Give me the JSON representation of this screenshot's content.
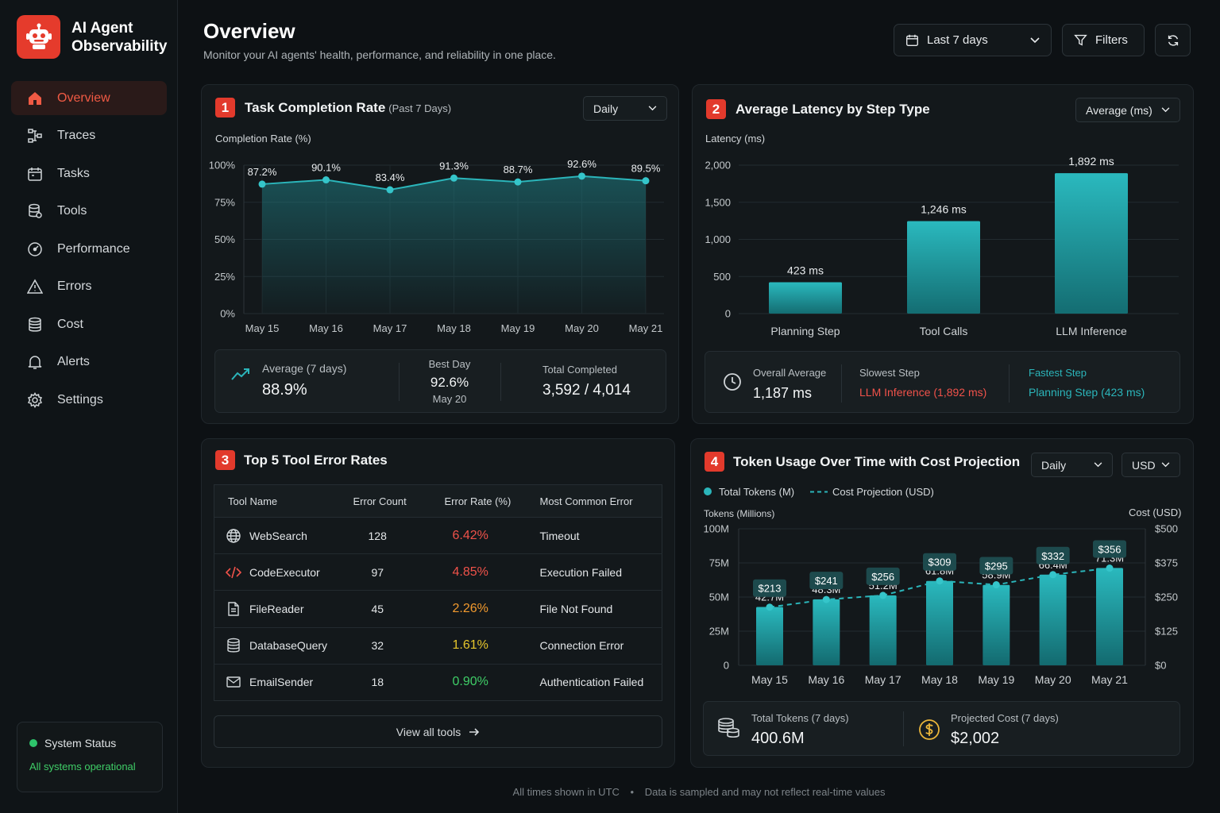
{
  "app": {
    "title_line1": "AI Agent",
    "title_line2": "Observability"
  },
  "nav": [
    {
      "label": "Overview",
      "icon": "home-icon",
      "active": true
    },
    {
      "label": "Traces",
      "icon": "traces-icon"
    },
    {
      "label": "Tasks",
      "icon": "calendar-icon"
    },
    {
      "label": "Tools",
      "icon": "tools-icon"
    },
    {
      "label": "Performance",
      "icon": "gauge-icon"
    },
    {
      "label": "Errors",
      "icon": "warning-icon"
    },
    {
      "label": "Cost",
      "icon": "coins-icon"
    },
    {
      "label": "Alerts",
      "icon": "bell-icon"
    },
    {
      "label": "Settings",
      "icon": "gear-icon"
    }
  ],
  "system_status": {
    "label": "System Status",
    "message": "All systems operational"
  },
  "header": {
    "title": "Overview",
    "subtitle": "Monitor your AI agents' health, performance, and reliability in one place.",
    "date_range": "Last 7 days",
    "filters": "Filters"
  },
  "task_card": {
    "number": "1",
    "title": "Task Completion Rate",
    "title_sub": "(Past 7 Days)",
    "select": "Daily",
    "summary": {
      "avg_label": "Average (7 days)",
      "avg_value": "88.9%",
      "best_label": "Best Day",
      "best_value": "92.6%",
      "best_date": "May 20",
      "total_label": "Total Completed",
      "total_value": "3,592 / 4,014"
    }
  },
  "latency_card": {
    "number": "2",
    "title": "Average Latency by Step Type",
    "select": "Average (ms)",
    "summary": {
      "overall_label": "Overall Average",
      "overall_value": "1,187 ms",
      "slowest_label": "Slowest Step",
      "slowest_value": "LLM Inference (1,892 ms)",
      "fastest_label": "Fastest Step",
      "fastest_value": "Planning Step (423 ms)"
    }
  },
  "errors_card": {
    "number": "3",
    "title": "Top 5 Tool Error Rates",
    "columns": [
      "Tool Name",
      "Error Count",
      "Error Rate (%)",
      "Most Common Error"
    ],
    "rows": [
      {
        "tool": "WebSearch",
        "icon": "globe-icon",
        "count": "128",
        "rate": "6.42%",
        "rate_color": "#f0524a",
        "error": "Timeout"
      },
      {
        "tool": "CodeExecutor",
        "icon": "code-icon",
        "count": "97",
        "rate": "4.85%",
        "rate_color": "#f0524a",
        "error": "Execution Failed"
      },
      {
        "tool": "FileReader",
        "icon": "file-icon",
        "count": "45",
        "rate": "2.26%",
        "rate_color": "#f29a2e",
        "error": "File Not Found"
      },
      {
        "tool": "DatabaseQuery",
        "icon": "database-icon",
        "count": "32",
        "rate": "1.61%",
        "rate_color": "#e6c62c",
        "error": "Connection Error"
      },
      {
        "tool": "EmailSender",
        "icon": "mail-icon",
        "count": "18",
        "rate": "0.90%",
        "rate_color": "#3fce67",
        "error": "Authentication Failed"
      }
    ],
    "view_all": "View all tools"
  },
  "token_card": {
    "number": "4",
    "title": "Token Usage Over Time with Cost Projection",
    "select_period": "Daily",
    "select_currency": "USD",
    "summary": {
      "tokens_label": "Total Tokens (7 days)",
      "tokens_value": "400.6M",
      "cost_label": "Projected Cost (7 days)",
      "cost_value": "$2,002"
    }
  },
  "footer": {
    "left": "All times shown in UTC",
    "right": "Data is sampled and may not reflect real-time values"
  },
  "colors": {
    "accent": "#e23a2c",
    "teal": "#2bb5ba",
    "bg": "#0d1114"
  },
  "chart_data": [
    {
      "type": "area",
      "title": "Task Completion Rate",
      "ylabel": "Completion Rate (%)",
      "categories": [
        "May 15",
        "May 16",
        "May 17",
        "May 18",
        "May 19",
        "May 20",
        "May 21"
      ],
      "values": [
        87.2,
        90.1,
        83.4,
        91.3,
        88.7,
        92.6,
        89.5
      ],
      "labels": [
        "87.2%",
        "90.1%",
        "83.4%",
        "91.3%",
        "88.7%",
        "92.6%",
        "89.5%"
      ],
      "ylim": [
        0,
        100
      ],
      "yticks": [
        "0%",
        "25%",
        "50%",
        "75%",
        "100%"
      ]
    },
    {
      "type": "bar",
      "title": "Average Latency by Step Type",
      "ylabel": "Latency (ms)",
      "categories": [
        "Planning Step",
        "Tool Calls",
        "LLM Inference"
      ],
      "values": [
        423,
        1246,
        1892
      ],
      "labels": [
        "423 ms",
        "1,246 ms",
        "1,892 ms"
      ],
      "ylim": [
        0,
        2000
      ],
      "yticks": [
        "0",
        "500",
        "1,000",
        "1,500",
        "2,000"
      ]
    },
    {
      "type": "bar",
      "title": "Token Usage Over Time with Cost Projection",
      "ylabel": "Tokens (Millions)",
      "y2label": "Cost (USD)",
      "categories": [
        "May 15",
        "May 16",
        "May 17",
        "May 18",
        "May 19",
        "May 20",
        "May 21"
      ],
      "series": [
        {
          "name": "Total Tokens (M)",
          "values": [
            42.7,
            48.3,
            51.2,
            61.8,
            58.9,
            66.4,
            71.3
          ],
          "labels": [
            "42.7M",
            "48.3M",
            "51.2M",
            "61.8M",
            "58.9M",
            "66.4M",
            "71.3M"
          ]
        },
        {
          "name": "Cost Projection (USD)",
          "values": [
            213,
            241,
            256,
            309,
            295,
            332,
            356
          ],
          "labels": [
            "$213",
            "$241",
            "$256",
            "$309",
            "$295",
            "$332",
            "$356"
          ]
        }
      ],
      "ylim": [
        0,
        100
      ],
      "y2lim": [
        0,
        500
      ],
      "yticks": [
        "0",
        "25M",
        "50M",
        "75M",
        "100M"
      ],
      "y2ticks": [
        "$0",
        "$125",
        "$250",
        "$375",
        "$500"
      ]
    }
  ]
}
